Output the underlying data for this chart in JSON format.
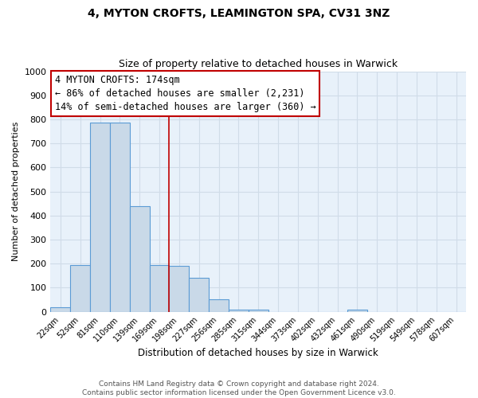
{
  "title": "4, MYTON CROFTS, LEAMINGTON SPA, CV31 3NZ",
  "subtitle": "Size of property relative to detached houses in Warwick",
  "xlabel": "Distribution of detached houses by size in Warwick",
  "ylabel": "Number of detached properties",
  "bar_labels": [
    "22sqm",
    "52sqm",
    "81sqm",
    "110sqm",
    "139sqm",
    "169sqm",
    "198sqm",
    "227sqm",
    "256sqm",
    "285sqm",
    "315sqm",
    "344sqm",
    "373sqm",
    "402sqm",
    "432sqm",
    "461sqm",
    "490sqm",
    "519sqm",
    "549sqm",
    "578sqm",
    "607sqm"
  ],
  "bar_values": [
    20,
    195,
    785,
    785,
    440,
    195,
    190,
    140,
    50,
    10,
    10,
    0,
    0,
    0,
    0,
    10,
    0,
    0,
    0,
    0,
    0
  ],
  "bar_color": "#c9d9e8",
  "bar_edgecolor": "#5b9bd5",
  "annotation_box_text": "4 MYTON CROFTS: 174sqm\n← 86% of detached houses are smaller (2,231)\n14% of semi-detached houses are larger (360) →",
  "vline_color": "#c00000",
  "vline_x": 5.5,
  "ylim": [
    0,
    1000
  ],
  "yticks": [
    0,
    100,
    200,
    300,
    400,
    500,
    600,
    700,
    800,
    900,
    1000
  ],
  "footer_line1": "Contains HM Land Registry data © Crown copyright and database right 2024.",
  "footer_line2": "Contains public sector information licensed under the Open Government Licence v3.0.",
  "background_color": "#e8f1fa",
  "grid_color": "#d0dce8",
  "title_fontsize": 10,
  "subtitle_fontsize": 9,
  "annotation_fontsize": 8.5,
  "footer_fontsize": 6.5,
  "bar_width": 1.0
}
